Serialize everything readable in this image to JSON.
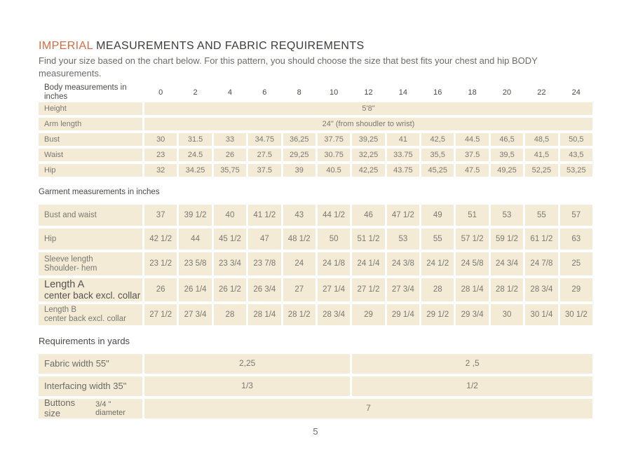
{
  "page": {
    "title_highlight": "IMPERIAL",
    "title_rest": " MEASUREMENTS AND FABRIC REQUIREMENTS",
    "subtitle": "Find your size based on the chart below. For this pattern, you should choose the size that best fits your chest and hip BODY measurements.",
    "page_number": "5"
  },
  "colors": {
    "accent_orange": "#d96a42",
    "cell_beige": "#f4ebd7",
    "text_dark": "#4b4a47",
    "text_muted": "#7a7871"
  },
  "body_table": {
    "header_label": "Body measurements in inches",
    "sizes": [
      "0",
      "2",
      "4",
      "6",
      "8",
      "10",
      "12",
      "14",
      "16",
      "18",
      "20",
      "22",
      "24"
    ],
    "merged_rows": [
      {
        "label": "Height",
        "value": "5'8\""
      },
      {
        "label": "Arm length",
        "value": "24\" (from shoudler to wrist)"
      }
    ],
    "rows": [
      {
        "label": "Bust",
        "values": [
          "30",
          "31.5",
          "33",
          "34.75",
          "36,25",
          "37.75",
          "39,25",
          "41",
          "42,5",
          "44.5",
          "46,5",
          "48,5",
          "50,5"
        ]
      },
      {
        "label": "Waist",
        "values": [
          "23",
          "24.5",
          "26",
          "27.5",
          "29,25",
          "30.75",
          "32,25",
          "33.75",
          "35,5",
          "37.5",
          "39,5",
          "41,5",
          "43,5"
        ]
      },
      {
        "label": "Hip",
        "values": [
          "32",
          "34.25",
          "35,75",
          "37.5",
          "39",
          "40.5",
          "42,25",
          "43.75",
          "45,25",
          "47.5",
          "49,25",
          "52,25",
          "53,25"
        ]
      }
    ]
  },
  "garment_table": {
    "header_label": "Garment measurements in inches",
    "rows": [
      {
        "label": "Bust and waist",
        "label2": "",
        "values": [
          "37",
          "39 1/2",
          "40",
          "41 1/2",
          "43",
          "44 1/2",
          "46",
          "47 1/2",
          "49",
          "51",
          "53",
          "55",
          "57"
        ]
      },
      {
        "label": "Hip",
        "label2": "",
        "values": [
          "42 1/2",
          "44",
          "45 1/2",
          "47",
          "48 1/2",
          "50",
          "51 1/2",
          "53",
          "55",
          "57 1/2",
          "59 1/2",
          "61 1/2",
          "63"
        ]
      },
      {
        "label": "Sleeve length",
        "label2": "Shoulder- hem",
        "values": [
          "23 1/2",
          "23 5/8",
          "23 3/4",
          "23 7/8",
          "24",
          "24 1/8",
          "24 1/4",
          "24 3/8",
          "24 1/2",
          "24 5/8",
          "24 3/4",
          "24 7/8",
          "25"
        ]
      },
      {
        "label": "Length A",
        "label2": "center back excl. collar",
        "values": [
          "26",
          "26 1/4",
          "26 1/2",
          "26 3/4",
          "27",
          "27 1/4",
          "27 1/2",
          "27 3/4",
          "28",
          "28 1/4",
          "28 1/2",
          "28 3/4",
          "29"
        ]
      },
      {
        "label": "Length B",
        "label2": "center back excl. collar",
        "values": [
          "27 1/2",
          "27 3/4",
          "28",
          "28 1/4",
          "28 1/2",
          "28 3/4",
          "29",
          "29 1/4",
          "29 1/2",
          "29 3/4",
          "30",
          "30 1/4",
          "30 1/2"
        ]
      }
    ]
  },
  "requirements_table": {
    "header_label": "Requirements in yards",
    "rows": [
      {
        "label": "Fabric width 55\"",
        "left_value": "2,25",
        "right_value": "2 ,5"
      },
      {
        "label": "Interfacing width 35\"",
        "left_value": "1/3",
        "right_value": "1/2"
      }
    ],
    "buttons_row": {
      "label": "Buttons size",
      "label_small": "3/4 \" diameter",
      "value": "7"
    }
  }
}
